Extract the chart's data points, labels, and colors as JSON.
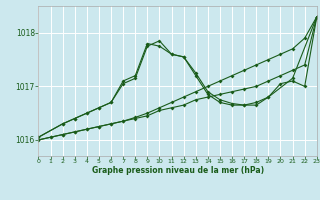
{
  "bg_color": "#cce8ee",
  "grid_color": "#ffffff",
  "line_color": "#1a5c1a",
  "title": "Graphe pression niveau de la mer (hPa)",
  "xlim": [
    0,
    23
  ],
  "ylim": [
    1015.7,
    1018.5
  ],
  "yticks": [
    1016,
    1017,
    1018
  ],
  "xticks": [
    0,
    1,
    2,
    3,
    4,
    5,
    6,
    7,
    8,
    9,
    10,
    11,
    12,
    13,
    14,
    15,
    16,
    17,
    18,
    19,
    20,
    21,
    22,
    23
  ],
  "line1_x": [
    0,
    1,
    2,
    3,
    4,
    5,
    6,
    7,
    8,
    9,
    10,
    11,
    12,
    13,
    14,
    15,
    16,
    17,
    18,
    19,
    20,
    21,
    22,
    23
  ],
  "line1_y": [
    1016.0,
    1016.05,
    1016.1,
    1016.15,
    1016.2,
    1016.25,
    1016.3,
    1016.35,
    1016.4,
    1016.45,
    1016.55,
    1016.6,
    1016.65,
    1016.75,
    1016.8,
    1016.85,
    1016.9,
    1016.95,
    1017.0,
    1017.1,
    1017.2,
    1017.3,
    1017.4,
    1018.3
  ],
  "line2_x": [
    0,
    1,
    2,
    3,
    4,
    5,
    6,
    7,
    8,
    9,
    10,
    11,
    12,
    13,
    14,
    15,
    16,
    17,
    18,
    19,
    20,
    21,
    22,
    23
  ],
  "line2_y": [
    1016.0,
    1016.05,
    1016.1,
    1016.15,
    1016.2,
    1016.25,
    1016.3,
    1016.35,
    1016.42,
    1016.5,
    1016.6,
    1016.7,
    1016.8,
    1016.9,
    1017.0,
    1017.1,
    1017.2,
    1017.3,
    1017.4,
    1017.5,
    1017.6,
    1017.7,
    1017.9,
    1018.3
  ],
  "line3_x": [
    0,
    2,
    3,
    4,
    5,
    6,
    7,
    8,
    9,
    10,
    11,
    12,
    13,
    14,
    15,
    16,
    17,
    18,
    19,
    20,
    21,
    22,
    23
  ],
  "line3_y": [
    1016.05,
    1016.3,
    1016.4,
    1016.5,
    1016.6,
    1016.7,
    1017.05,
    1017.15,
    1017.75,
    1017.85,
    1017.6,
    1017.55,
    1017.2,
    1016.85,
    1016.7,
    1016.65,
    1016.65,
    1016.7,
    1016.8,
    1017.05,
    1017.1,
    1017.0,
    1018.3
  ],
  "line4_x": [
    0,
    2,
    3,
    4,
    5,
    6,
    7,
    8,
    9,
    10,
    11,
    12,
    13,
    14,
    15,
    16,
    17,
    18,
    19,
    21,
    23
  ],
  "line4_y": [
    1016.05,
    1016.3,
    1016.4,
    1016.5,
    1016.6,
    1016.7,
    1017.1,
    1017.2,
    1017.8,
    1017.75,
    1017.6,
    1017.55,
    1017.25,
    1016.9,
    1016.75,
    1016.68,
    1016.65,
    1016.65,
    1016.8,
    1017.15,
    1018.3
  ]
}
